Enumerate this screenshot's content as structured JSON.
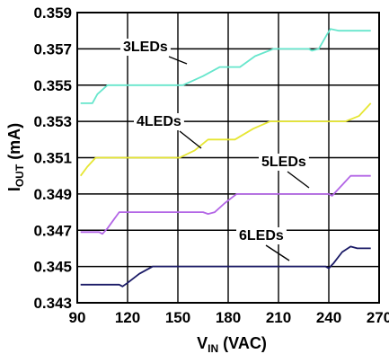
{
  "chart_data": {
    "type": "line",
    "xlabel_main": "V",
    "xlabel_sub": "IN",
    "xlabel_unit": " (VAC)",
    "ylabel_main": "I",
    "ylabel_sub": "OUT",
    "ylabel_unit": " (mA)",
    "xlim": [
      90,
      270
    ],
    "ylim": [
      0.343,
      0.359
    ],
    "grid": true,
    "x_ticks": [
      "90",
      "120",
      "150",
      "180",
      "210",
      "240",
      "270"
    ],
    "y_ticks": [
      "0.343",
      "0.345",
      "0.347",
      "0.349",
      "0.351",
      "0.353",
      "0.355",
      "0.357",
      "0.359"
    ],
    "series": [
      {
        "name": "3LEDs",
        "color": "#66e6cc",
        "points": [
          [
            92,
            0.354
          ],
          [
            99,
            0.354
          ],
          [
            102,
            0.3545
          ],
          [
            108,
            0.355
          ],
          [
            148,
            0.355
          ],
          [
            153,
            0.355
          ],
          [
            165,
            0.3555
          ],
          [
            175,
            0.356
          ],
          [
            187,
            0.356
          ],
          [
            196,
            0.3566
          ],
          [
            207,
            0.357
          ],
          [
            228,
            0.357
          ],
          [
            230,
            0.3569
          ],
          [
            234,
            0.357
          ],
          [
            239,
            0.3578
          ],
          [
            241,
            0.3581
          ],
          [
            246,
            0.358
          ],
          [
            265,
            0.358
          ]
        ]
      },
      {
        "name": "4LEDs",
        "color": "#e6e633",
        "points": [
          [
            92,
            0.35
          ],
          [
            96,
            0.3505
          ],
          [
            101,
            0.351
          ],
          [
            148,
            0.351
          ],
          [
            151,
            0.351
          ],
          [
            160,
            0.3514
          ],
          [
            168,
            0.352
          ],
          [
            184,
            0.352
          ],
          [
            195,
            0.3526
          ],
          [
            205,
            0.353
          ],
          [
            250,
            0.353
          ],
          [
            258,
            0.3533
          ],
          [
            265,
            0.354
          ]
        ]
      },
      {
        "name": "5LEDs",
        "color": "#b366e6",
        "points": [
          [
            92,
            0.3469
          ],
          [
            103,
            0.3469
          ],
          [
            105,
            0.3468
          ],
          [
            108,
            0.3471
          ],
          [
            115,
            0.348
          ],
          [
            165,
            0.348
          ],
          [
            168,
            0.3479
          ],
          [
            172,
            0.348
          ],
          [
            178,
            0.3485
          ],
          [
            185,
            0.349
          ],
          [
            240,
            0.349
          ],
          [
            242,
            0.3489
          ],
          [
            247,
            0.3494
          ],
          [
            253,
            0.35
          ],
          [
            265,
            0.35
          ]
        ]
      },
      {
        "name": "6LEDs",
        "color": "#1a1a66",
        "points": [
          [
            92,
            0.344
          ],
          [
            115,
            0.344
          ],
          [
            117,
            0.3439
          ],
          [
            120,
            0.3441
          ],
          [
            127,
            0.3446
          ],
          [
            135,
            0.345
          ],
          [
            145,
            0.345
          ],
          [
            238,
            0.345
          ],
          [
            240,
            0.3449
          ],
          [
            243,
            0.3452
          ],
          [
            248,
            0.3458
          ],
          [
            253,
            0.3461
          ],
          [
            257,
            0.346
          ],
          [
            265,
            0.346
          ]
        ]
      }
    ],
    "annotations": [
      {
        "text": "3LEDs",
        "series": "3LEDs"
      },
      {
        "text": "4LEDs",
        "series": "4LEDs"
      },
      {
        "text": "5LEDs",
        "series": "5LEDs"
      },
      {
        "text": "6LEDs",
        "series": "6LEDs"
      }
    ]
  }
}
